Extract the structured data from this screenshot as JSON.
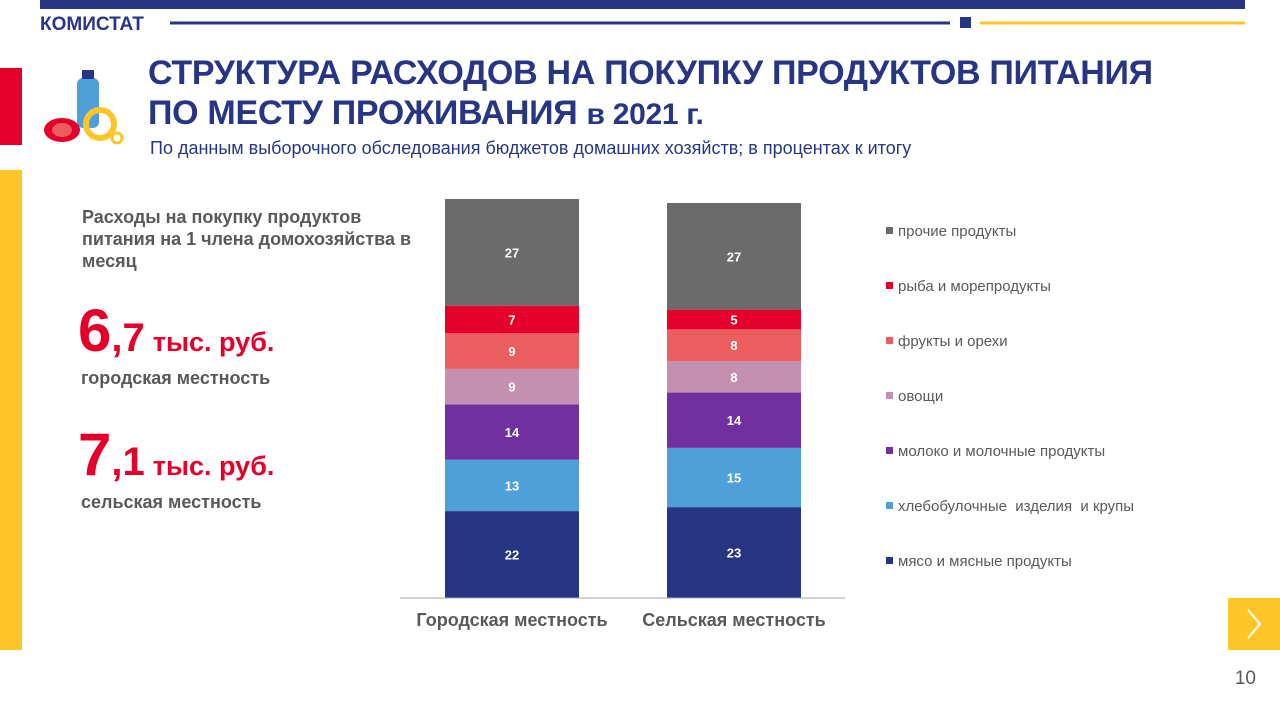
{
  "header": {
    "brand": "КОМИСТАТ",
    "title_lines": [
      "СТРУКТУРА РАСХОДОВ НА ПОКУПКУ ПРОДУКТОВ ПИТАНИЯ",
      "ПО МЕСТУ ПРОЖИВАНИЯ"
    ],
    "title_year": "в 2021 г.",
    "subtitle": "По данным выборочного обследования бюджетов домашних хозяйств; в процентах к итогу"
  },
  "side": {
    "heading": "Расходы на покупку продуктов питания на 1 члена домохозяйства в месяц",
    "items": [
      {
        "integer": "6",
        "fraction": ",7",
        "unit": "тыс. руб.",
        "label": "городская местность"
      },
      {
        "integer": "7",
        "fraction": ",1",
        "unit": "тыс. руб.",
        "label": "сельская местность"
      }
    ]
  },
  "page_number": "10",
  "chart_data": {
    "type": "stacked_bar",
    "categories": [
      "Городская местность",
      "Сельская местность"
    ],
    "ylim": [
      0,
      101
    ],
    "legend": "right",
    "series": [
      {
        "name": "мясо и мясные продукты",
        "color": "#283583",
        "values": [
          22,
          23
        ]
      },
      {
        "name": "хлебобулочные  изделия  и крупы",
        "color": "#4f9fd8",
        "values": [
          13,
          15
        ]
      },
      {
        "name": "молоко и молочные продукты",
        "color": "#7030a0",
        "values": [
          14,
          14
        ]
      },
      {
        "name": "овощи",
        "color": "#c490b0",
        "values": [
          9,
          8
        ]
      },
      {
        "name": "фрукты и орехи",
        "color": "#eb5d5f",
        "values": [
          9,
          8
        ]
      },
      {
        "name": "рыба и морепродукты",
        "color": "#e4002b",
        "values": [
          7,
          5
        ]
      },
      {
        "name": "прочие продукты",
        "color": "#6b6b6b",
        "values": [
          27,
          27
        ]
      }
    ]
  }
}
